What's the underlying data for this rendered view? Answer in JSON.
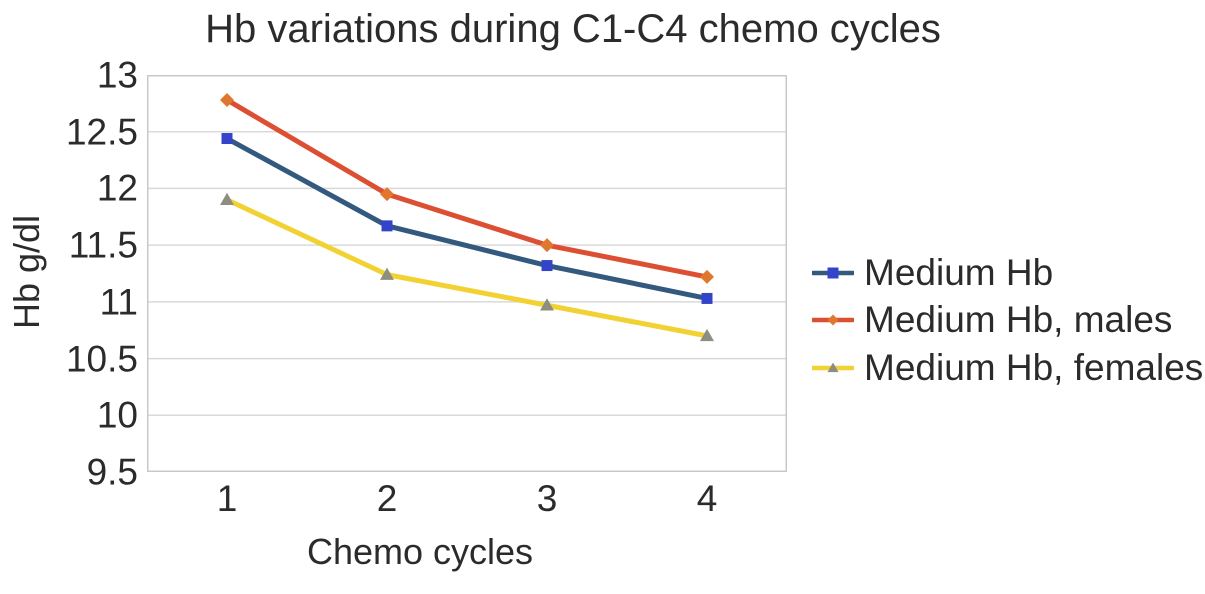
{
  "chart_data": {
    "type": "line",
    "title": "Hb variations during C1-C4 chemo cycles",
    "xlabel": "Chemo cycles",
    "ylabel": "Hb g/dl",
    "categories": [
      "1",
      "2",
      "3",
      "4"
    ],
    "yticks": [
      13,
      12.5,
      12,
      11.5,
      11,
      10.5,
      10,
      9.5
    ],
    "ylim": [
      9.5,
      13
    ],
    "grid": "horizontal",
    "legend_position": "right",
    "grid_color": "#d9d9d9",
    "border_color": "#c8c8c8",
    "series": [
      {
        "name": "Medium Hb",
        "values": [
          12.44,
          11.67,
          11.32,
          11.03
        ],
        "color": "#33597e",
        "marker": "square",
        "marker_color": "#3344cb",
        "marker_size": 5.5
      },
      {
        "name": "Medium Hb, males",
        "values": [
          12.78,
          11.95,
          11.5,
          11.22
        ],
        "color": "#dd4f33",
        "marker": "diamond",
        "marker_color": "#e0772e",
        "marker_size": 7
      },
      {
        "name": "Medium Hb, females",
        "values": [
          11.9,
          11.24,
          10.97,
          10.7
        ],
        "color": "#f2d233",
        "marker": "triangle",
        "marker_color": "#8e8e80",
        "marker_size": 7
      }
    ]
  }
}
